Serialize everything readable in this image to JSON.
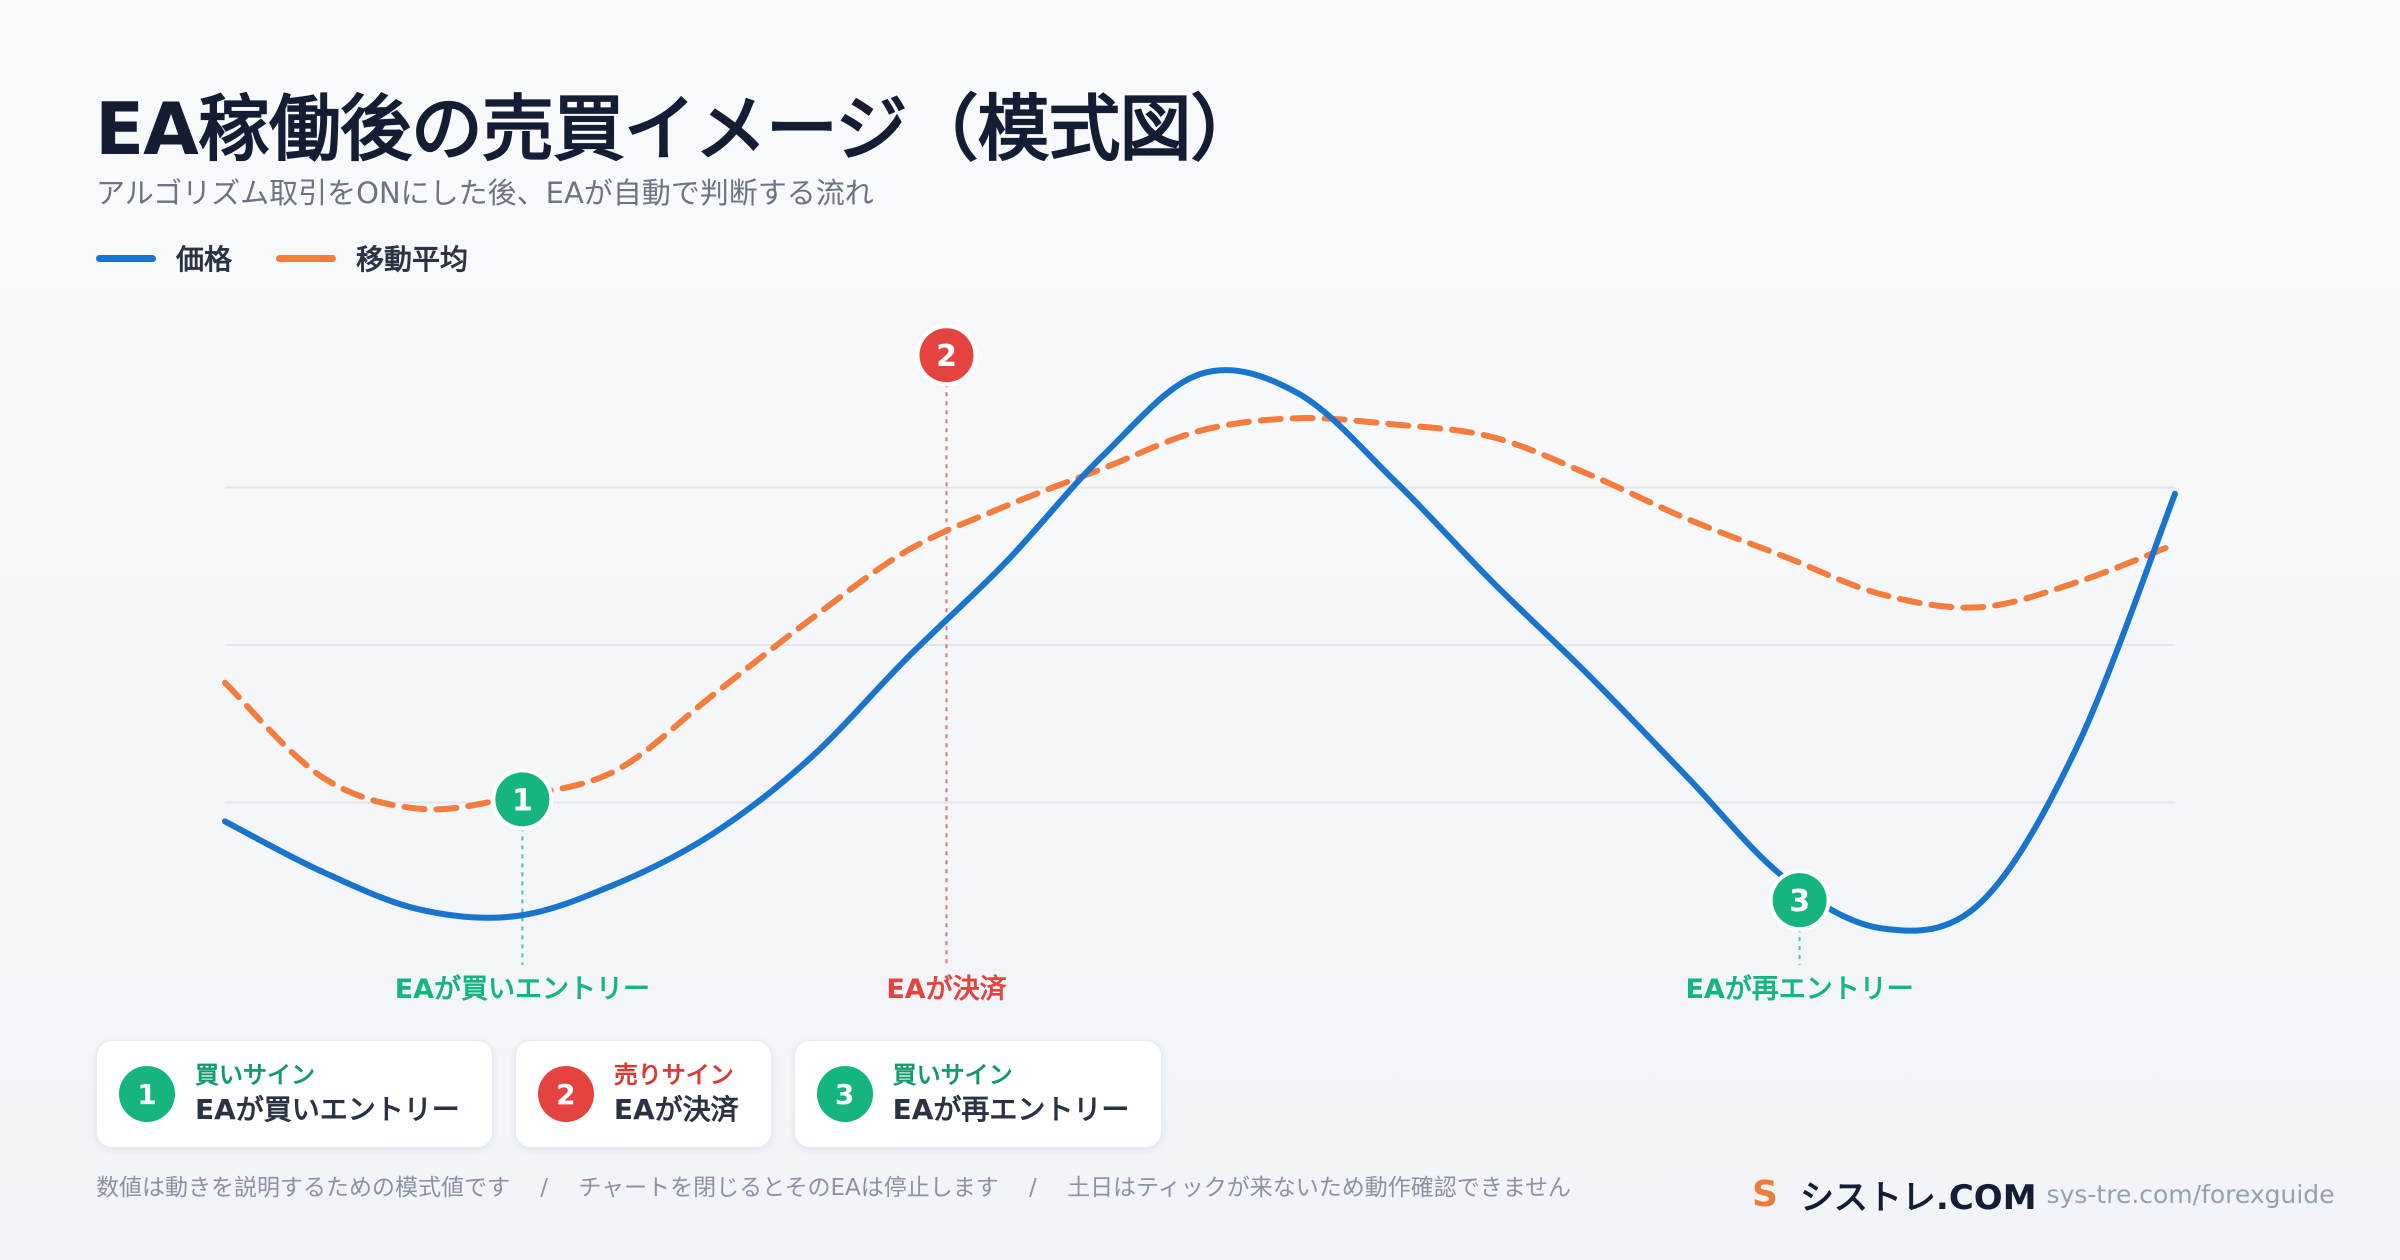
{
  "title": "EA稼働後の売買イメージ（模式図）",
  "subtitle": "アルゴリズム取引をONにした後、EAが自動で判断する流れ",
  "colors": {
    "price": "#1874cd",
    "moving_average": "#f47c3c",
    "buy": "#16b47e",
    "sell": "#e5433f",
    "grid": "#e3e6ec"
  },
  "chart_data": {
    "type": "line",
    "x": [
      0,
      1,
      2,
      3,
      4,
      5,
      6,
      7,
      8,
      9,
      10,
      11,
      12,
      13,
      14,
      15,
      16,
      17,
      18,
      19,
      20
    ],
    "xlim": [
      0,
      20
    ],
    "ylim": [
      0,
      100
    ],
    "grid": true,
    "legend_position": "top-left",
    "series": [
      {
        "name": "価格",
        "key": "price",
        "style": "solid",
        "values": [
          22,
          14,
          8,
          7,
          12,
          20,
          32,
          48,
          63,
          80,
          93,
          90,
          76,
          60,
          45,
          29,
          13,
          5,
          9,
          34,
          74
        ]
      },
      {
        "name": "移動平均",
        "key": "moving_average",
        "style": "dashed",
        "values": [
          44,
          29,
          24,
          26,
          30,
          42,
          54,
          65,
          72,
          78,
          84,
          86,
          85,
          83,
          77,
          70,
          64,
          58,
          56,
          60,
          66
        ]
      }
    ],
    "annotations": [
      {
        "number": "1",
        "x": 3.05,
        "y": 25.5,
        "label": "EAが買いエントリー",
        "kind": "buy"
      },
      {
        "number": "2",
        "x": 7.4,
        "y": 96,
        "label": "EAが決済",
        "kind": "sell"
      },
      {
        "number": "3",
        "x": 16.15,
        "y": 9.5,
        "label": "EAが再エントリー",
        "kind": "buy"
      }
    ]
  },
  "cards": [
    {
      "number": "1",
      "kind": "買いサイン",
      "desc": "EAが買いエントリー",
      "color": "#16b47e"
    },
    {
      "number": "2",
      "kind": "売りサイン",
      "desc": "EAが決済",
      "color": "#e5433f"
    },
    {
      "number": "3",
      "kind": "買いサイン",
      "desc": "EAが再エントリー",
      "color": "#16b47e"
    }
  ],
  "footnote": "数値は動きを説明するための模式値です　 /　 チャートを閉じるとそのEAは停止します　 /　 土日はティックが来ないため動作確認できません",
  "brand": {
    "logo": "S",
    "name": "シストレ.COM",
    "url": "sys-tre.com/forexguide"
  }
}
